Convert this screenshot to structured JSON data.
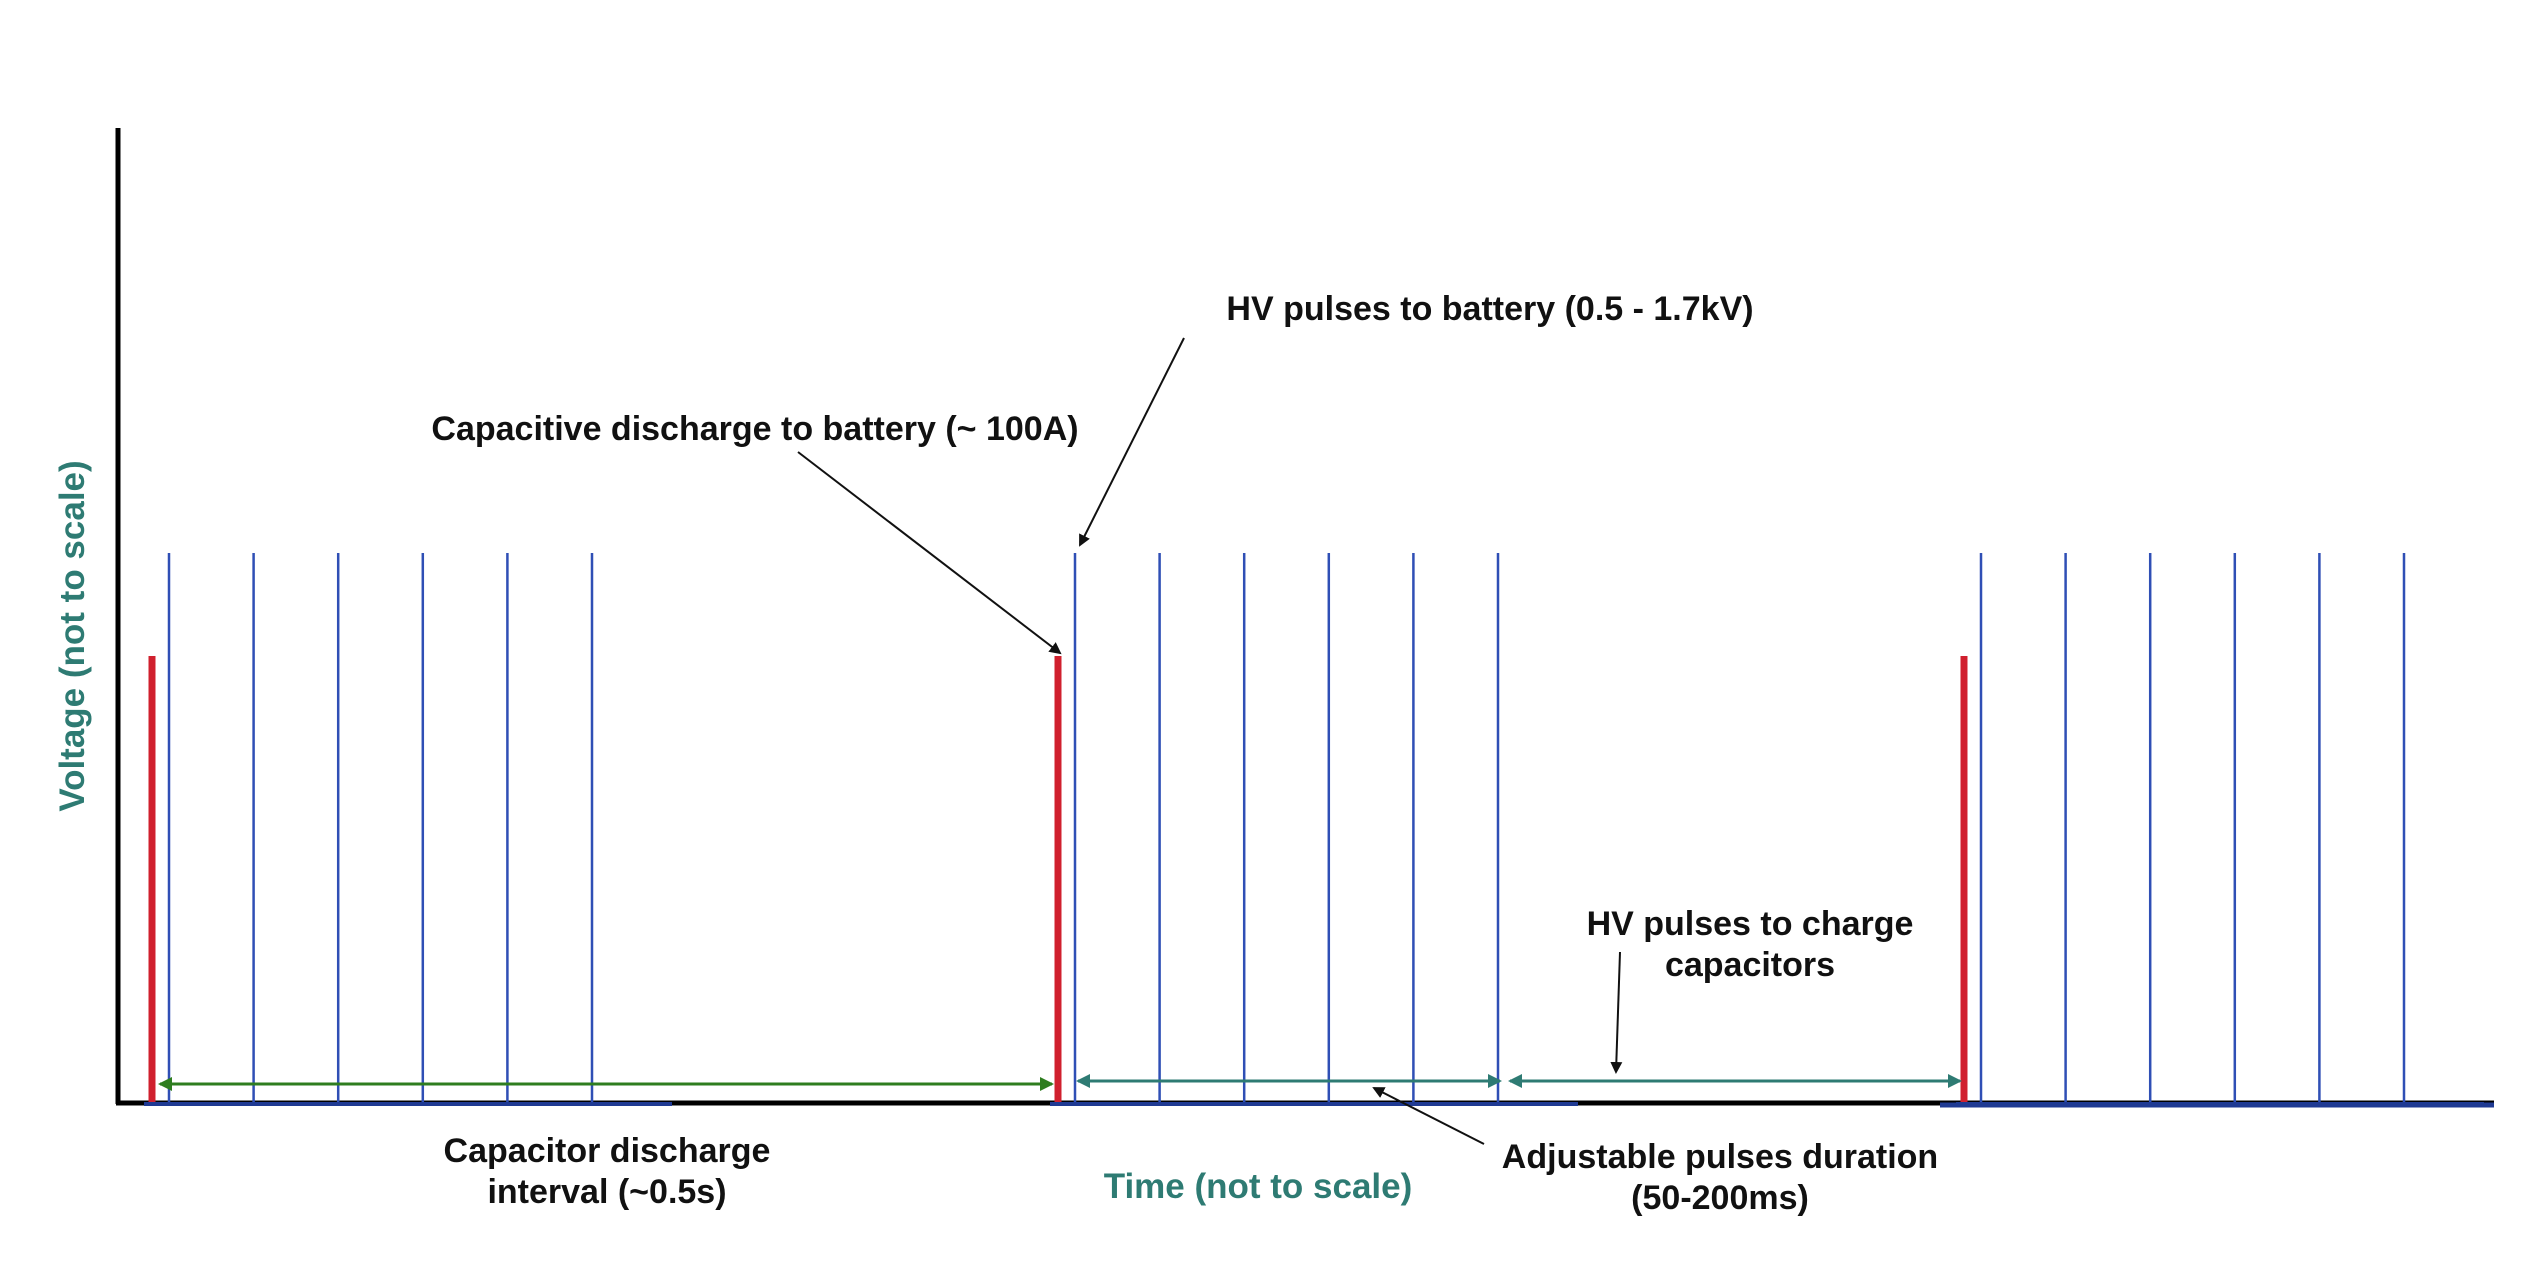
{
  "labels": {
    "hv_battery": "HV pulses to battery (0.5 - 1.7kV)",
    "cap_discharge": "Capacitive discharge to battery (~ 100A)",
    "hv_charge_line1": "HV pulses to charge",
    "hv_charge_line2": "capacitors",
    "interval_line1": "Capacitor discharge",
    "interval_line2": "interval (~0.5s)",
    "adjustable_line1": "Adjustable pulses duration",
    "adjustable_line2": "(50-200ms)"
  },
  "axes": {
    "x_label": "Time (not to scale)",
    "y_label": "Voltage (not to scale)"
  },
  "colors": {
    "axis": "#000000",
    "baseline": "#1f3a93",
    "hv_pulse": "#2f4fb5",
    "discharge": "#d0202e",
    "interval_arrow": "#2e7d1f",
    "duration_arrow": "#2e7b73",
    "axis_label": "#2e7b73",
    "annotation": "#111111"
  },
  "signal": {
    "cycles": 3,
    "hv_pulses_per_cycle": 6
  }
}
